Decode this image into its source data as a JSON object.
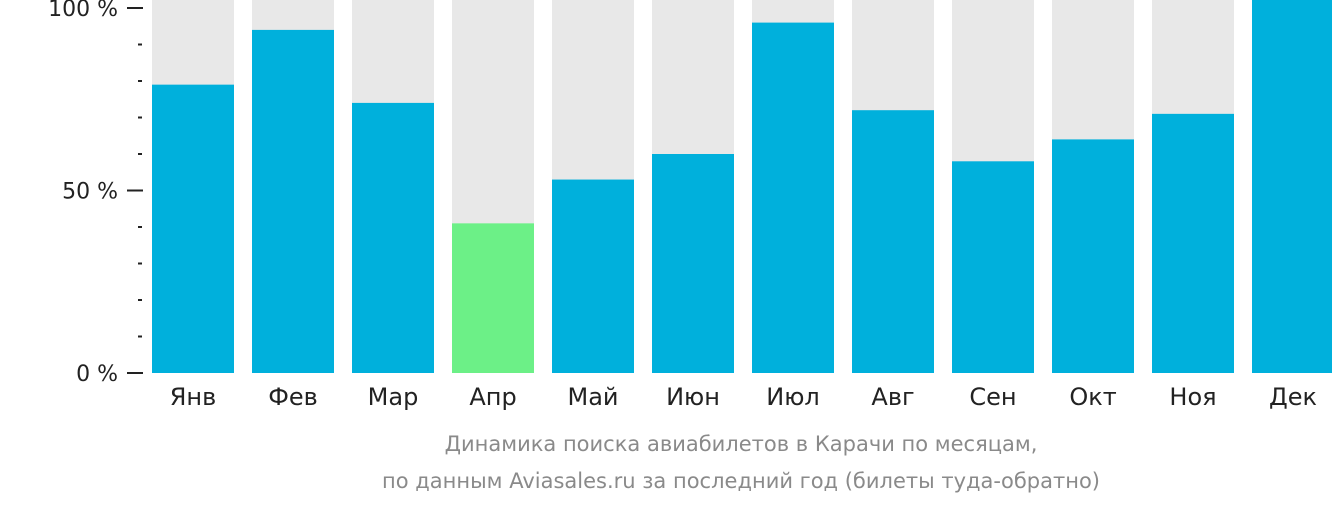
{
  "chart_data": {
    "type": "bar",
    "categories": [
      "Янв",
      "Фев",
      "Мар",
      "Апр",
      "Май",
      "Июн",
      "Июл",
      "Авг",
      "Сен",
      "Окт",
      "Ноя",
      "Дек"
    ],
    "values": [
      79,
      94,
      74,
      41,
      53,
      60,
      96,
      72,
      58,
      64,
      71,
      100
    ],
    "highlight_index": 3,
    "ylim": [
      0,
      100
    ],
    "yticks": [
      {
        "value": 0,
        "label": "0 %"
      },
      {
        "value": 50,
        "label": "50 %"
      },
      {
        "value": 100,
        "label": "100 %"
      }
    ],
    "minor_tick_step": 10,
    "caption_line1": "Динамика поиска авиабилетов в Карачи по месяцам,",
    "caption_line2": "по данным Aviasales.ru за последний год (билеты туда-обратно)",
    "colors": {
      "bar": "#00b0dc",
      "highlight": "#6cf087",
      "background_bar": "#e8e8e8",
      "axis": "#222222",
      "caption": "#8a8a8a"
    }
  }
}
